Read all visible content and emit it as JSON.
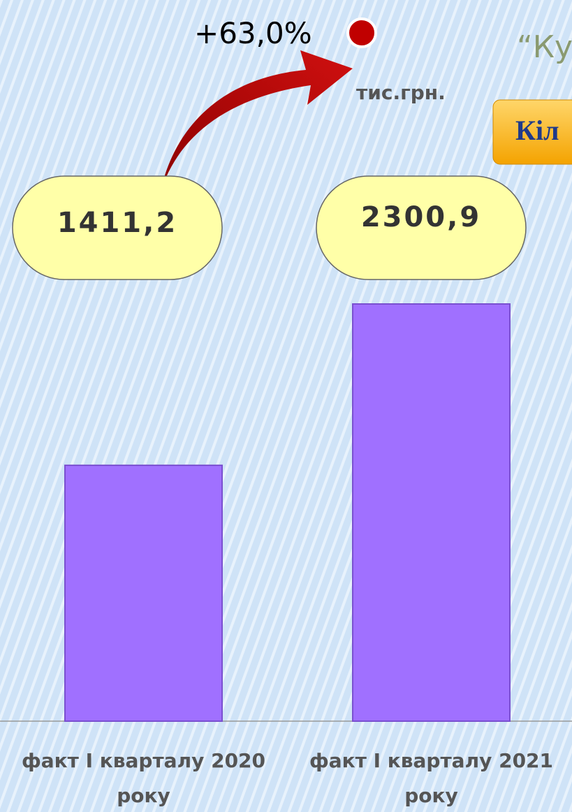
{
  "chart_data": {
    "type": "bar",
    "title": "“Ку",
    "button": "Кіл",
    "unit_label": "тис.грн.",
    "annotation": "+63,0%",
    "categories": [
      "факт  I кварталу 2020 року",
      "факт I кварталу 2021 року"
    ],
    "values": [
      1411.2,
      2300.9
    ],
    "value_labels": [
      "1411,2",
      "2300,9"
    ],
    "color": "#a070ff"
  }
}
